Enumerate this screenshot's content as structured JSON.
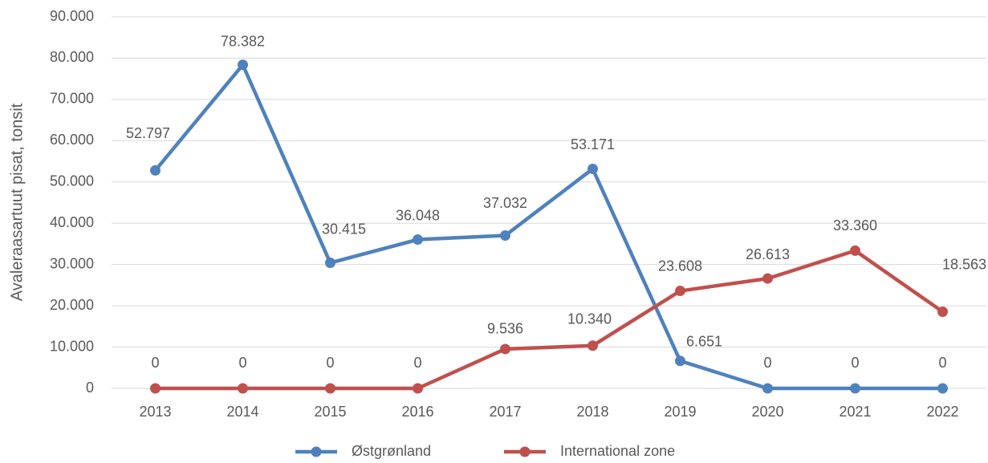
{
  "chart_data": {
    "type": "line",
    "y_label": "Avaleraasartuut pisat, tonsit",
    "categories": [
      "2013",
      "2014",
      "2015",
      "2016",
      "2017",
      "2018",
      "2019",
      "2020",
      "2021",
      "2022"
    ],
    "series": [
      {
        "name": "Østgrønland",
        "color": "#4f81bd",
        "values": [
          52797,
          78382,
          30415,
          36048,
          37032,
          53171,
          6651,
          0,
          0,
          0
        ],
        "value_labels": [
          "52.797",
          "78.382",
          "30.415",
          "36.048",
          "37.032",
          "53.171",
          "6.651",
          "0",
          "0",
          "0"
        ]
      },
      {
        "name": "International zone",
        "color": "#c0504d",
        "values": [
          0,
          0,
          0,
          0,
          9536,
          10340,
          23608,
          26613,
          33360,
          18563
        ],
        "value_labels": [
          "0",
          "0",
          "0",
          "0",
          "9.536",
          "10.340",
          "23.608",
          "26.613",
          "33.360",
          "18.563"
        ]
      }
    ],
    "ylim": [
      0,
      90000
    ],
    "yticks": [
      0,
      {
        "value": 10000,
        "label": "10.000"
      },
      {
        "value": 20000,
        "label": "20.000"
      },
      {
        "value": 30000,
        "label": "30.000"
      },
      {
        "value": 40000,
        "label": "40.000"
      },
      {
        "value": 50000,
        "label": "50.000"
      },
      {
        "value": 60000,
        "label": "60.000"
      },
      {
        "value": 70000,
        "label": "70.000"
      },
      {
        "value": 80000,
        "label": "80.000"
      },
      {
        "value": 90000,
        "label": "90.000"
      }
    ],
    "grid": true,
    "legend": "bottom"
  }
}
